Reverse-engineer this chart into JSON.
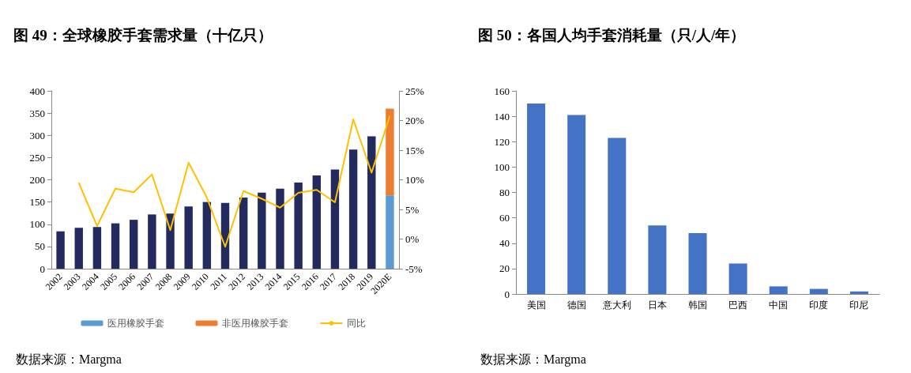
{
  "chart_data": [
    {
      "type": "bar",
      "title": "图 49：全球橡胶手套需求量（十亿只）",
      "categories": [
        "2002",
        "2003",
        "2004",
        "2005",
        "2006",
        "2007",
        "2008",
        "2009",
        "2010",
        "2011",
        "2012",
        "2013",
        "2014",
        "2015",
        "2016",
        "2017",
        "2018",
        "2019",
        "2020E"
      ],
      "stacked": true,
      "series": [
        {
          "color": "#232a5e",
          "values": [
            84,
            92,
            94,
            102,
            110,
            122,
            124,
            140,
            150,
            148,
            160,
            171,
            180,
            194,
            210,
            223,
            268,
            298,
            null
          ]
        },
        {
          "name": "医用橡胶手套",
          "color": "#5b9bd5",
          "values": [
            null,
            null,
            null,
            null,
            null,
            null,
            null,
            null,
            null,
            null,
            null,
            null,
            null,
            null,
            null,
            null,
            null,
            null,
            165
          ]
        },
        {
          "name": "非医用橡胶手套",
          "color": "#ed7d31",
          "values": [
            null,
            null,
            null,
            null,
            null,
            null,
            null,
            null,
            null,
            null,
            null,
            null,
            null,
            null,
            null,
            null,
            null,
            null,
            195
          ]
        },
        {
          "name": "同比",
          "type": "line",
          "axis": "y2",
          "color": "#ffc000",
          "values": [
            null,
            9.5,
            2.2,
            8.5,
            7.9,
            10.9,
            1.5,
            12.9,
            7.0,
            -1.3,
            8.1,
            6.8,
            5.3,
            7.8,
            8.3,
            6.2,
            20.2,
            11.2,
            20.8
          ]
        }
      ],
      "ylim": [
        0,
        400
      ],
      "yticks": [
        0,
        50,
        100,
        150,
        200,
        250,
        300,
        350,
        400
      ],
      "y2lim": [
        -5,
        25
      ],
      "y2ticks": [
        {
          "value": -5,
          "label": "-5%"
        },
        {
          "value": 0,
          "label": "0%"
        },
        {
          "value": 5,
          "label": "5%"
        },
        {
          "value": 10,
          "label": "10%"
        },
        {
          "value": 15,
          "label": "15%"
        },
        {
          "value": 20,
          "label": "20%"
        },
        {
          "value": 25,
          "label": "25%"
        }
      ],
      "marker": "none",
      "legend": "bottom",
      "annotations": [
        "数据来源：Margma"
      ]
    },
    {
      "type": "bar",
      "title": "图 50：各国人均手套消耗量（只/人/年）",
      "categories": [
        "美国",
        "德国",
        "意大利",
        "日本",
        "韩国",
        "巴西",
        "中国",
        "印度",
        "印尼"
      ],
      "series": [
        {
          "color": "#4472c4",
          "values": [
            150,
            141,
            123,
            54,
            48,
            24,
            6,
            4,
            2
          ]
        }
      ],
      "ylim": [
        0,
        160
      ],
      "yticks": [
        0,
        20,
        40,
        60,
        80,
        100,
        120,
        140,
        160
      ],
      "annotations": [
        "数据来源：Margma"
      ]
    }
  ]
}
